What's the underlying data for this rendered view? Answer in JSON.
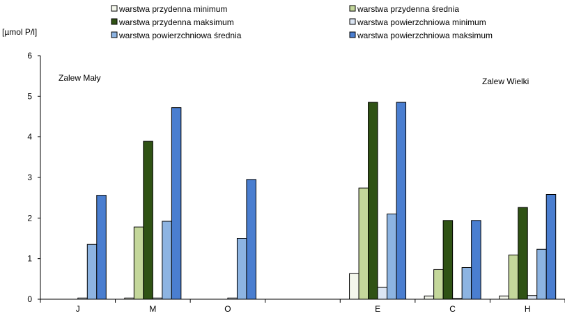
{
  "chart_data": {
    "type": "bar",
    "ylabel": "[µmol P/l]",
    "ylim": [
      0,
      6
    ],
    "yticks": [
      0,
      1,
      2,
      3,
      4,
      5,
      6
    ],
    "grid": false,
    "legend_position": "top",
    "categories": [
      "J",
      "M",
      "O",
      "",
      "E",
      "C",
      "H"
    ],
    "annotations": [
      "Zalew Mały",
      "Zalew Wielki"
    ],
    "series": [
      {
        "name": "warstwa przydenna minimum",
        "color": "#F4F7EC",
        "values": [
          null,
          0.03,
          null,
          null,
          0.63,
          0.08,
          0.08
        ]
      },
      {
        "name": "warstwa przydenna średnia",
        "color": "#C4D79B",
        "values": [
          null,
          1.78,
          null,
          null,
          2.74,
          0.73,
          1.09
        ]
      },
      {
        "name": "warstwa przydenna maksimum",
        "color": "#2F5214",
        "values": [
          null,
          3.89,
          null,
          null,
          4.85,
          1.94,
          2.26
        ]
      },
      {
        "name": "warstwa powierzchniowa minimum",
        "color": "#DCE6F4",
        "values": [
          0.03,
          0.03,
          0.03,
          null,
          0.29,
          0.02,
          0.09
        ]
      },
      {
        "name": "warstwa powierzchniowa średnia",
        "color": "#8DB4E2",
        "values": [
          1.35,
          1.92,
          1.5,
          null,
          2.1,
          0.78,
          1.23
        ]
      },
      {
        "name": "warstwa powierzchniowa maksimum",
        "color": "#4A7ED0",
        "values": [
          2.56,
          4.72,
          2.95,
          null,
          4.85,
          1.94,
          2.58
        ]
      }
    ]
  }
}
